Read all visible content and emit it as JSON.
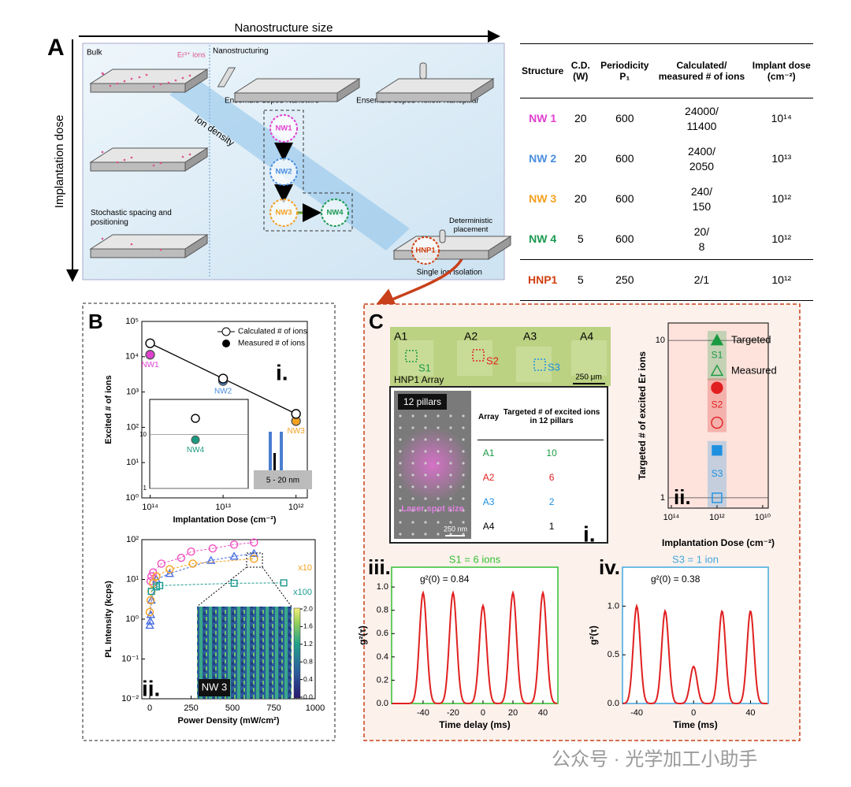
{
  "panel_a": {
    "label": "A",
    "x_axis_title": "Nanostructure size",
    "y_axis_title": "Implantation dose",
    "bulk": "Bulk",
    "er_ions": "Er³⁺ ions",
    "nanostructuring": "Nanostructuring",
    "nanowire": "Ensemble doped Nanowire",
    "nanopillar": "Ensemble doped Hollow Nanopillar",
    "ion_density": "Ion density",
    "stochastic": "Stochastic spacing and positioning",
    "deterministic": "Deterministic placement",
    "single_ion": "Single ion isolation",
    "nodes": [
      {
        "label": "NW1",
        "color": "#e040d0"
      },
      {
        "label": "NW2",
        "color": "#4a8ee0"
      },
      {
        "label": "NW3",
        "color": "#f5a020"
      },
      {
        "label": "NW4",
        "color": "#1a9a50"
      },
      {
        "label": "HNP1",
        "color": "#d04010"
      }
    ]
  },
  "table": {
    "headers": [
      "Structure",
      "C.D. (W)",
      "Periodicity P₁",
      "Calculated/ measured # of ions",
      "Implant dose (cm⁻²)"
    ],
    "rows": [
      [
        "NW 1",
        "20",
        "600",
        [
          "24000/",
          "11400"
        ],
        "10¹⁴"
      ],
      [
        "NW 2",
        "20",
        "600",
        [
          "2400/",
          "2050"
        ],
        "10¹³"
      ],
      [
        "NW 3",
        "20",
        "600",
        [
          "240/",
          "150"
        ],
        "10¹²"
      ],
      [
        "NW 4",
        "5",
        "600",
        [
          "20/",
          "8"
        ],
        "10¹²"
      ],
      [
        "HNP1",
        "5",
        "250",
        [
          "2/1"
        ],
        "10¹²"
      ]
    ],
    "row_colors": [
      "#e040d0",
      "#4a8ee0",
      "#f5a020",
      "#1a9a50",
      "#d04010"
    ]
  },
  "panel_b": {
    "label": "B",
    "chart_i": {
      "type": "scatter",
      "numeral": "i.",
      "x_label": "Implantation Dose (cm⁻²)",
      "y_label": "Excited # of ions",
      "log_x": true,
      "log_y": true,
      "x": [
        100000000000000,
        10000000000000,
        1000000000000
      ],
      "xlim": [
        130000000000000,
        700000000000
      ],
      "xticks": [
        {
          "value": 100000000000000,
          "label": "10¹⁴"
        },
        {
          "value": 10000000000000,
          "label": "10¹³"
        },
        {
          "value": 1000000000000,
          "label": "10¹²"
        }
      ],
      "ylim": [
        1,
        100000
      ],
      "yticks": [
        {
          "value": 1,
          "label": "10⁰"
        },
        {
          "value": 10,
          "label": "10¹"
        },
        {
          "value": 100,
          "label": "10²"
        },
        {
          "value": 1000,
          "label": "10³"
        },
        {
          "value": 10000,
          "label": "10⁴"
        },
        {
          "value": 100000,
          "label": "10⁵"
        }
      ],
      "series": [
        {
          "name": "Calculated # of ions",
          "color": "#000000",
          "values": [
            24000,
            2400,
            240
          ]
        },
        {
          "name": "Measured # of ions",
          "color": "#000000",
          "values": [
            11400,
            2050,
            150
          ],
          "point_colors": [
            "#e040d0",
            "#4a8ee0",
            "#f5a020"
          ]
        }
      ],
      "point_labels": [
        "NW1",
        "NW2",
        "NW3"
      ],
      "inset": {
        "point_label": "NW4",
        "point_color": "#1a9a80",
        "calculated": 20,
        "measured": 8,
        "log_y": true,
        "ylim": [
          1,
          45
        ],
        "yticks": [
          1,
          10
        ],
        "grid": true,
        "scale_label": "5 - 20 nm"
      }
    },
    "chart_ii": {
      "type": "scatter",
      "numeral": "ii.",
      "x_label": "Power Density (mW/cm²)",
      "y_label": "PL Intensity (kcps)",
      "log_y": true,
      "xlim": [
        -48,
        1000
      ],
      "xticks": [
        0,
        250,
        500,
        750,
        1000
      ],
      "ylim": [
        0.01,
        100
      ],
      "yticks": [
        {
          "value": 0.01,
          "label": "10⁻²"
        },
        {
          "value": 0.1,
          "label": "10⁻¹"
        },
        {
          "value": 1,
          "label": "10⁰"
        },
        {
          "value": 10,
          "label": "10¹"
        },
        {
          "value": 100,
          "label": "10²"
        }
      ],
      "series": [
        {
          "color": "#f050c0",
          "marker": "circle",
          "x": [
            5,
            10,
            20,
            70,
            190,
            250,
            380,
            510,
            630
          ],
          "values": [
            9,
            12,
            15,
            25,
            35,
            50,
            60,
            75,
            85
          ]
        },
        {
          "color": "#4a6ee0",
          "marker": "triangle",
          "x": [
            0,
            3,
            6,
            10,
            40,
            120,
            370,
            510,
            630
          ],
          "values": [
            0.7,
            0.9,
            1.3,
            3,
            10,
            14,
            30,
            38,
            45
          ]
        },
        {
          "color": "#f5a020",
          "marker": "circle",
          "scale_label": "x10",
          "x": [
            0,
            5,
            10,
            20,
            40,
            120,
            260,
            630
          ],
          "values": [
            1.5,
            3,
            5,
            8,
            12,
            18,
            25,
            33
          ]
        },
        {
          "color": "#1a9a90",
          "marker": "square",
          "scale_label": "x100",
          "x": [
            10,
            40,
            60,
            510,
            810
          ],
          "values": [
            5,
            6.5,
            7,
            8,
            8.2
          ]
        }
      ],
      "heatmap": {
        "label": "NW 3",
        "colorbar_lim": [
          0,
          2
        ],
        "colorbar_ticks": [
          {
            "value": 0,
            "label": "0.0"
          },
          {
            "value": 0.4,
            "label": "0.4"
          },
          {
            "value": 0.8,
            "label": "0.8"
          },
          {
            "value": 1.2,
            "label": "1.2"
          },
          {
            "value": 1.6,
            "label": "1.6"
          },
          {
            "value": 2,
            "label": "2.0"
          }
        ]
      }
    }
  },
  "panel_c": {
    "label": "C",
    "numeral": "i.",
    "array": {
      "labels": [
        "A1",
        "A2",
        "A3",
        "A4"
      ],
      "sites": [
        "S1",
        "S2",
        "S3"
      ],
      "scale": "250 μm",
      "caption": "HNP1 Array"
    },
    "sem": {
      "pillars": "12 pillars",
      "laser": "Laser spot size",
      "scale": "250 nm"
    },
    "targets": {
      "headers": [
        "Array",
        "Targeted # of excited ions in 12 pillars"
      ],
      "rows": [
        [
          "A1",
          "10"
        ],
        [
          "A2",
          "6"
        ],
        [
          "A3",
          "2"
        ],
        [
          "A4",
          "1"
        ]
      ],
      "row_colors": [
        "#1a9a40",
        "#e02020",
        "#1e90e0",
        "#000000"
      ]
    },
    "chart_ii": {
      "type": "scatter",
      "numeral": "ii.",
      "x_label": "Implantation Dose (cm⁻²)",
      "y_label": "Targeted # of excited Er ions",
      "log_x": true,
      "log_y": true,
      "categories": [
        "S1",
        "S2",
        "S3"
      ],
      "colors": [
        "#1a9a40",
        "#e02020",
        "#1e90e0"
      ],
      "markers": [
        "triangle",
        "circle",
        "square"
      ],
      "x": [
        1000000000000,
        1000000000000,
        1000000000000
      ],
      "xlim": [
        137000000000000,
        5700000000
      ],
      "xticks": [
        {
          "value": 100000000000000,
          "label": "10¹⁴"
        },
        {
          "value": 1000000000000,
          "label": "10¹²"
        },
        {
          "value": 10000000000,
          "label": "10¹⁰"
        }
      ],
      "ylim": [
        0.86,
        12.9
      ],
      "yticks": [
        1,
        10
      ],
      "grid": true,
      "series": [
        {
          "name": "Targeted",
          "filled": true,
          "values": [
            10,
            5,
            2
          ]
        },
        {
          "name": "Measured",
          "filled": false,
          "values": [
            6.4,
            3,
            1
          ]
        }
      ]
    },
    "chart_iii": {
      "type": "line",
      "numeral": "iii.",
      "title": "S1 = 6 ions",
      "annotation": "g²(0) = 0.84",
      "x_label": "Time delay (ms)",
      "y_label": "g²(τ)",
      "frame_color": "#30c030",
      "color": "#e02020",
      "xlim": [
        -61,
        50
      ],
      "xticks": [
        -40,
        -20,
        0,
        20,
        40
      ],
      "ylim": [
        0,
        1.17
      ],
      "yticks": [
        {
          "value": 0,
          "label": "0.0"
        },
        {
          "value": 0.2,
          "label": "0.2"
        },
        {
          "value": 0.4,
          "label": "0.4"
        },
        {
          "value": 0.6,
          "label": "0.6"
        },
        {
          "value": 0.8,
          "label": "0.8"
        },
        {
          "value": 1,
          "label": "1.0"
        }
      ],
      "peaks_x": [
        -40,
        -20,
        0,
        20,
        40
      ],
      "values": [
        0.95,
        0.95,
        0.84,
        0.95,
        0.95
      ]
    },
    "chart_iv": {
      "type": "line",
      "numeral": "iv.",
      "title": "S3 = 1 ion",
      "annotation": "g²(0) = 0.38",
      "x_label": "Time (ms)",
      "y_label": "g²(τ)",
      "frame_color": "#40a8e0",
      "color": "#e02020",
      "xlim": [
        -50,
        52.5
      ],
      "xticks": [
        -40,
        0,
        40
      ],
      "ylim": [
        0,
        1.4
      ],
      "yticks": [
        {
          "value": 0,
          "label": "0.0"
        },
        {
          "value": 0.5,
          "label": "0.5"
        },
        {
          "value": 1,
          "label": "1.0"
        }
      ],
      "peaks_x": [
        -40,
        -20,
        0,
        20,
        40
      ],
      "values": [
        1.0,
        0.95,
        0.38,
        0.95,
        0.95
      ]
    }
  },
  "watermark": "公众号 · 光学加工小助手"
}
